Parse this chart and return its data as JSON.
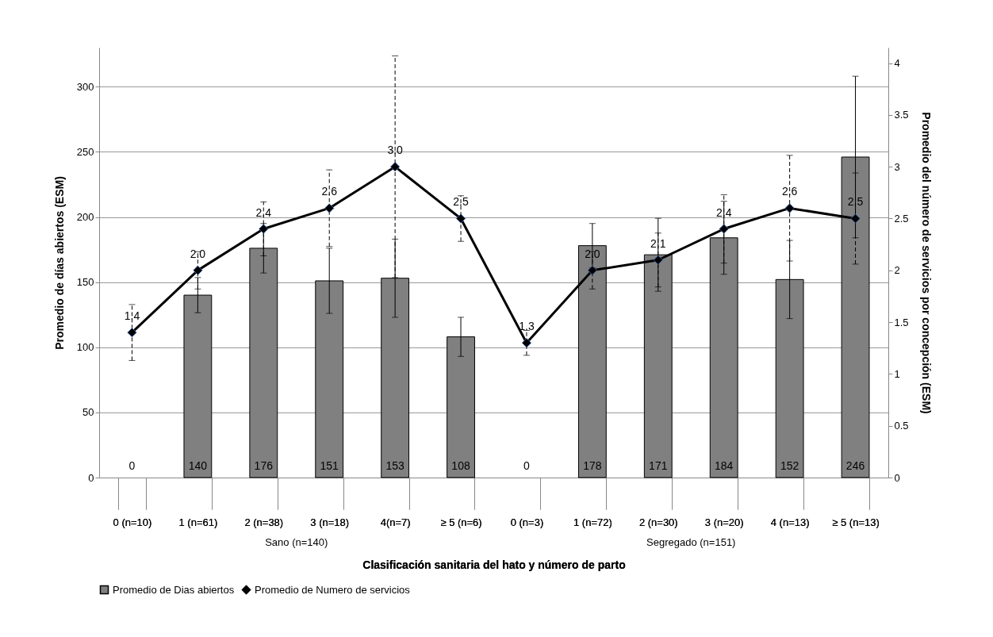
{
  "chart_data": {
    "type": "bar",
    "categories": [
      "0 (n=10)",
      "1 (n=61)",
      "2 (n=38)",
      "3 (n=18)",
      "4(n=7)",
      "≥ 5 (n=6)",
      "0 (n=3)",
      "1 (n=72)",
      "2 (n=30)",
      "3 (n=20)",
      "4 (n=13)",
      "≥ 5 (n=13)"
    ],
    "series": [
      {
        "name": "Promedio de Dias abiertos",
        "color": "#808080",
        "values": [
          0,
          140,
          176,
          151,
          153,
          108,
          0,
          178,
          171,
          184,
          152,
          246
        ],
        "errors": [
          null,
          13.5,
          19,
          25,
          30,
          15,
          null,
          17,
          28,
          28,
          30,
          62
        ]
      },
      {
        "name": "Promedio de Numero de servicios",
        "type": "line",
        "axis": "y2",
        "color": "#000000",
        "values": [
          1.4,
          2.0,
          2.4,
          2.6,
          3.0,
          2.5,
          1.3,
          2.0,
          2.1,
          2.4,
          2.6,
          2.5
        ],
        "value_labels": [
          "1.4",
          "2.0",
          "2.4",
          "2.6",
          "3.0",
          "2.5",
          "1.3",
          "2.0",
          "2.1",
          "2.4",
          "2.6",
          "2.5"
        ],
        "errors": [
          0.27,
          0.18,
          0.26,
          0.37,
          1.07,
          0.22,
          0.12,
          0.18,
          0.26,
          0.33,
          0.51,
          0.44
        ]
      }
    ],
    "xlabel": "Clasificación sanitaria del hato  y número de parto",
    "ylabel": "Promedio de días abiertos (ESM)",
    "y2label": "Promedio del número de servicios por concepción (ESM)",
    "ylim": [
      0,
      330
    ],
    "yticks": [
      0,
      50,
      100,
      150,
      200,
      250,
      300
    ],
    "y2lim": [
      0,
      4.15
    ],
    "y2ticks": [
      0,
      0.5,
      1,
      1.5,
      2,
      2.5,
      3,
      3.5,
      4
    ],
    "annotations": [
      "Sano (n=140)",
      "Segregado (n=151)"
    ],
    "data_labels": true,
    "grid": "y",
    "legend": "bottom",
    "marker": "diamond",
    "line_style": "solid"
  }
}
